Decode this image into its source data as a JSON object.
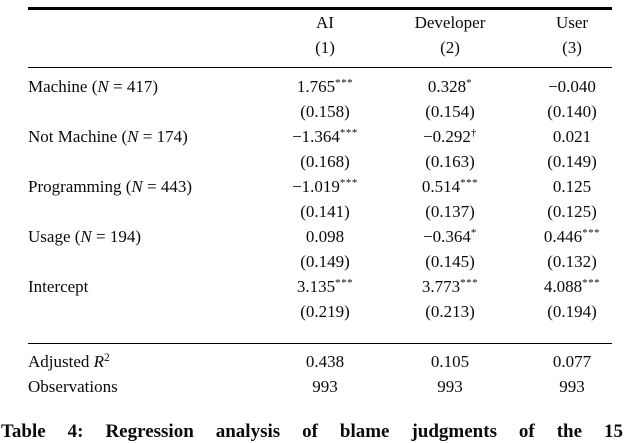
{
  "table": {
    "header": {
      "col_labels": [
        "AI",
        "Developer",
        "User"
      ],
      "col_numbers": [
        "(1)",
        "(2)",
        "(3)"
      ]
    },
    "rows": [
      {
        "label_pre": "Machine (",
        "label_var": "N",
        "label_post": " = 417)",
        "cells": [
          {
            "est": "1.765",
            "mark": "***",
            "se": "(0.158)"
          },
          {
            "est": "0.328",
            "mark": "*",
            "se": "(0.154)"
          },
          {
            "est": "−0.040",
            "mark": "",
            "se": "(0.140)"
          }
        ]
      },
      {
        "label_pre": "Not Machine (",
        "label_var": "N",
        "label_post": " = 174)",
        "cells": [
          {
            "est": "−1.364",
            "mark": "***",
            "se": "(0.168)"
          },
          {
            "est": "−0.292",
            "mark": "†",
            "se": "(0.163)"
          },
          {
            "est": "0.021",
            "mark": "",
            "se": "(0.149)"
          }
        ]
      },
      {
        "label_pre": "Programming (",
        "label_var": "N",
        "label_post": " = 443)",
        "cells": [
          {
            "est": "−1.019",
            "mark": "***",
            "se": "(0.141)"
          },
          {
            "est": "0.514",
            "mark": "***",
            "se": "(0.137)"
          },
          {
            "est": "0.125",
            "mark": "",
            "se": "(0.125)"
          }
        ]
      },
      {
        "label_pre": "Usage (",
        "label_var": "N",
        "label_post": " = 194)",
        "cells": [
          {
            "est": "0.098",
            "mark": "",
            "se": "(0.149)"
          },
          {
            "est": "−0.364",
            "mark": "*",
            "se": "(0.145)"
          },
          {
            "est": "0.446",
            "mark": "***",
            "se": "(0.132)"
          }
        ]
      },
      {
        "label_pre": "Intercept",
        "label_var": "",
        "label_post": "",
        "cells": [
          {
            "est": "3.135",
            "mark": "***",
            "se": "(0.219)"
          },
          {
            "est": "3.773",
            "mark": "***",
            "se": "(0.213)"
          },
          {
            "est": "4.088",
            "mark": "***",
            "se": "(0.194)"
          }
        ]
      }
    ],
    "footer": {
      "adj_r2": {
        "label_pre": "Adjusted ",
        "label_var": "R",
        "label_sup": "2",
        "values": [
          "0.438",
          "0.105",
          "0.077"
        ]
      },
      "observations": {
        "label": "Observations",
        "values": [
          "993",
          "993",
          "993"
        ]
      }
    }
  },
  "caption": {
    "partial_text": "Table 4: Regression analysis of blame judgments of the 15"
  }
}
